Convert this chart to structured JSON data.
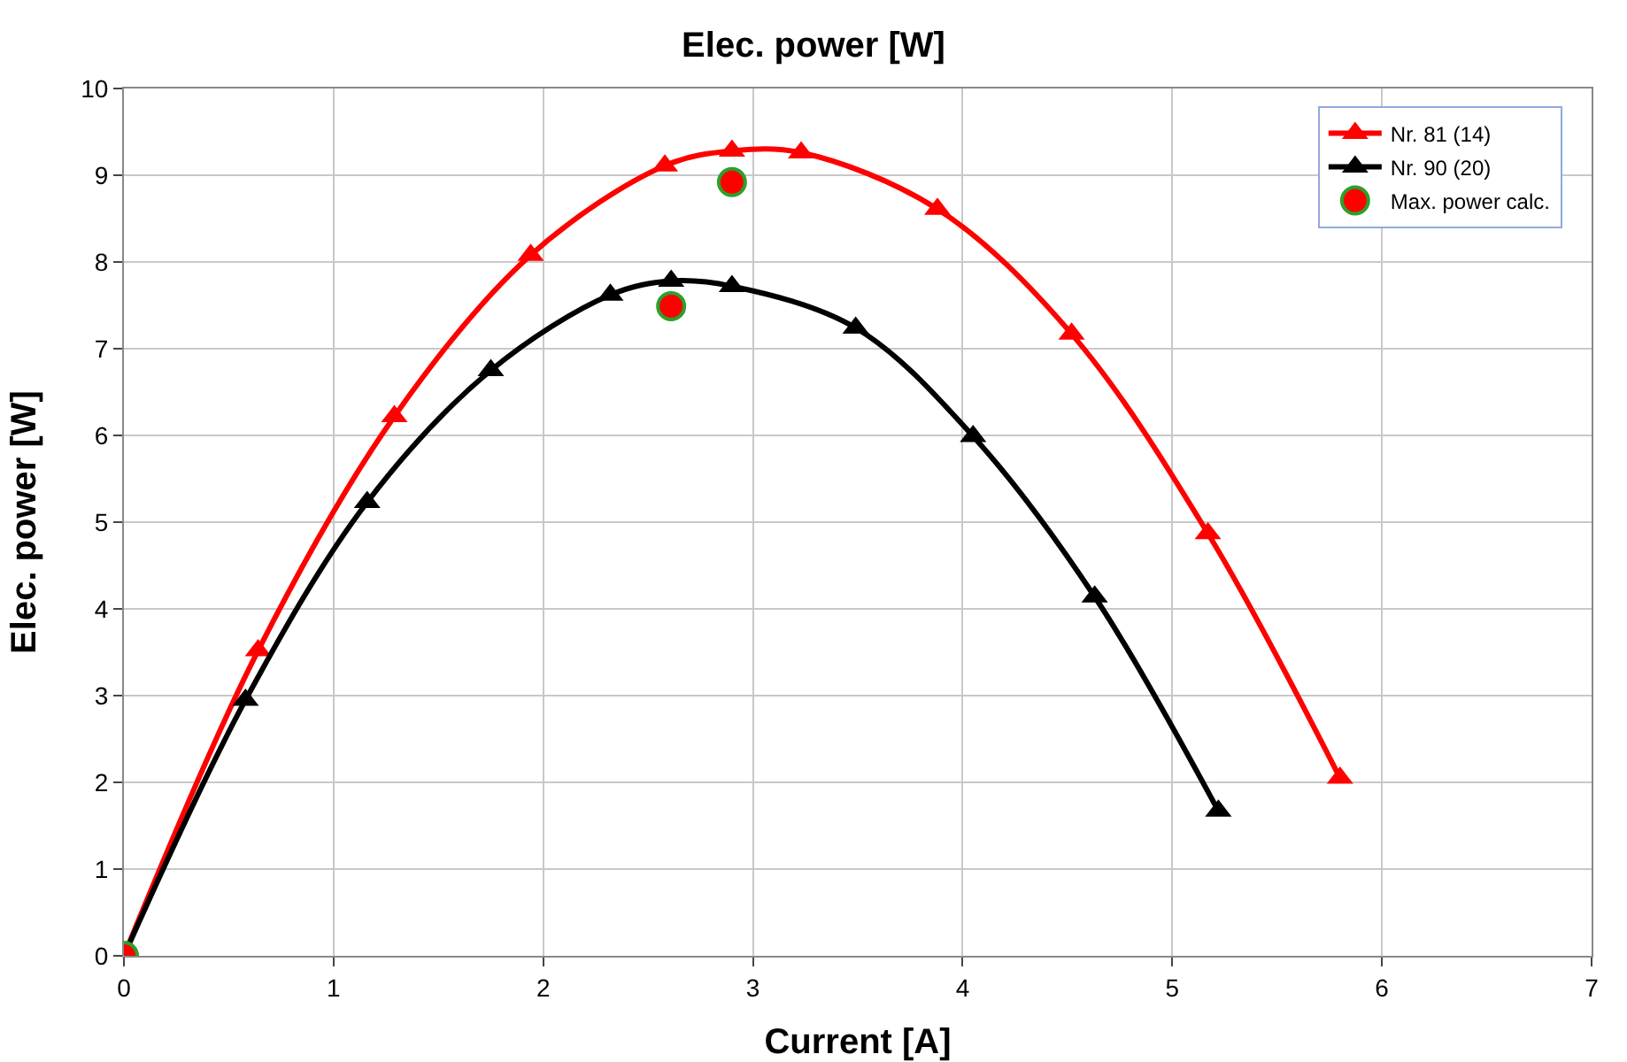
{
  "chart_data": {
    "type": "line",
    "title": "Elec. power [W]",
    "xlabel": "Current [A]",
    "ylabel": "Elec. power [W]",
    "xlim": [
      0,
      7
    ],
    "xticks": [
      0,
      1,
      2,
      3,
      4,
      5,
      6,
      7
    ],
    "ylim": [
      0,
      10
    ],
    "yticks": [
      0,
      1,
      2,
      3,
      4,
      5,
      6,
      7,
      8,
      9,
      10
    ],
    "grid": true,
    "legend": "top right",
    "marker": "triangle",
    "line_style": "solid",
    "series": [
      {
        "name": "Nr. 81 (14)",
        "color": "#ff0000",
        "x": [
          0,
          0.64,
          1.29,
          1.94,
          2.58,
          2.9,
          3.23,
          3.88,
          4.52,
          5.17,
          5.8
        ],
        "values": [
          0,
          3.52,
          6.22,
          8.08,
          9.11,
          9.28,
          9.26,
          8.61,
          7.17,
          4.87,
          2.05
        ]
      },
      {
        "name": "Nr. 90 (20)",
        "color": "#000000",
        "x": [
          0,
          0.58,
          1.16,
          1.75,
          2.32,
          2.61,
          2.9,
          3.49,
          4.05,
          4.63,
          5.22
        ],
        "values": [
          0,
          2.95,
          5.23,
          6.75,
          7.62,
          7.78,
          7.72,
          7.24,
          5.99,
          4.14,
          1.67
        ]
      },
      {
        "name": "Max. power calc.",
        "type": "scatter",
        "marker": "circle",
        "color": "#ff0000",
        "x": [
          0,
          2.61,
          2.9
        ],
        "values": [
          0,
          7.49,
          8.92
        ]
      }
    ]
  }
}
